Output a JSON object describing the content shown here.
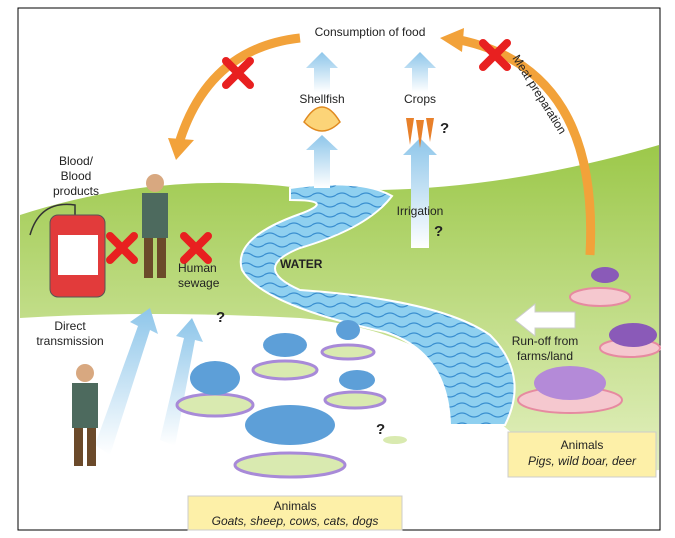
{
  "top": {
    "consumption": "Consumption of food",
    "meat_preparation": "Meat preparation"
  },
  "foods": {
    "shellfish": "Shellfish",
    "crops": "Crops"
  },
  "blood_products": [
    "Blood/",
    "Blood",
    "products"
  ],
  "water": "WATER",
  "irrigation": "Irrigation",
  "human_sewage": [
    "Human",
    "sewage"
  ],
  "direct_transmission": [
    "Direct",
    "transmission"
  ],
  "runoff": [
    "Run-off from",
    "farms/land"
  ],
  "unknown_marks": [
    "?",
    "?",
    "?",
    "?"
  ],
  "wild_animals": {
    "title": "Animals",
    "examples": "Pigs, wild boar, deer"
  },
  "domestic_animals": {
    "title": "Animals",
    "examples": "Goats, sheep, cows, cats, dogs"
  }
}
